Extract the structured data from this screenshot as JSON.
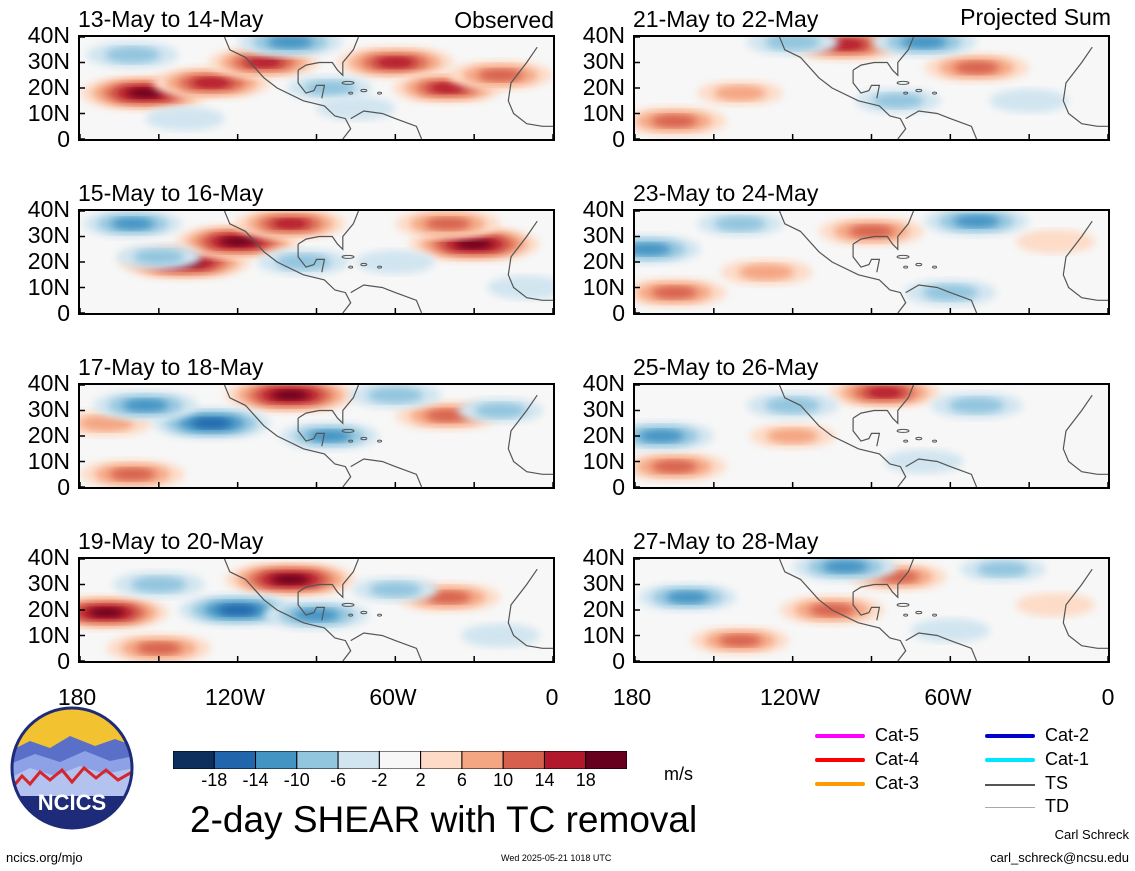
{
  "headers": {
    "observed": "Observed",
    "projected": "Projected Sum"
  },
  "chart_data": {
    "type": "heatmap",
    "title": "2-day SHEAR with TC removal",
    "units": "m/s",
    "y_ticks": [
      "40N",
      "30N",
      "20N",
      "10N",
      "0"
    ],
    "x_ticks": [
      "180",
      "120W",
      "60W",
      "0"
    ],
    "panels": [
      {
        "label": "13-May to 14-May",
        "group": "observed",
        "features": [
          {
            "lon": -155,
            "lat": 18,
            "value": 22
          },
          {
            "lon": -130,
            "lat": 22,
            "value": 18
          },
          {
            "lon": -110,
            "lat": 30,
            "value": 16
          },
          {
            "lon": -60,
            "lat": 30,
            "value": 18
          },
          {
            "lon": -40,
            "lat": 20,
            "value": 16
          },
          {
            "lon": -20,
            "lat": 25,
            "value": 14
          },
          {
            "lon": -100,
            "lat": 38,
            "value": -14
          },
          {
            "lon": -160,
            "lat": 33,
            "value": -10
          },
          {
            "lon": -85,
            "lat": 20,
            "value": -8
          },
          {
            "lon": -75,
            "lat": 12,
            "value": -6
          },
          {
            "lon": -140,
            "lat": 8,
            "value": -6
          }
        ]
      },
      {
        "label": "15-May to 16-May",
        "group": "observed",
        "features": [
          {
            "lon": -140,
            "lat": 20,
            "value": 22
          },
          {
            "lon": -120,
            "lat": 28,
            "value": 20
          },
          {
            "lon": -100,
            "lat": 35,
            "value": 16
          },
          {
            "lon": -30,
            "lat": 27,
            "value": 22
          },
          {
            "lon": -40,
            "lat": 35,
            "value": 14
          },
          {
            "lon": -160,
            "lat": 35,
            "value": -12
          },
          {
            "lon": -150,
            "lat": 22,
            "value": -8
          },
          {
            "lon": -95,
            "lat": 20,
            "value": -10
          },
          {
            "lon": -60,
            "lat": 20,
            "value": -6
          },
          {
            "lon": -10,
            "lat": 10,
            "value": -6
          }
        ]
      },
      {
        "label": "17-May to 18-May",
        "group": "observed",
        "features": [
          {
            "lon": -100,
            "lat": 36,
            "value": 22
          },
          {
            "lon": -40,
            "lat": 28,
            "value": 14
          },
          {
            "lon": -170,
            "lat": 25,
            "value": 10
          },
          {
            "lon": -160,
            "lat": 5,
            "value": 14
          },
          {
            "lon": -130,
            "lat": 25,
            "value": -18
          },
          {
            "lon": -155,
            "lat": 32,
            "value": -14
          },
          {
            "lon": -85,
            "lat": 20,
            "value": -12
          },
          {
            "lon": -60,
            "lat": 36,
            "value": -10
          },
          {
            "lon": -20,
            "lat": 30,
            "value": -8
          }
        ]
      },
      {
        "label": "19-May to 20-May",
        "group": "observed",
        "features": [
          {
            "lon": -170,
            "lat": 19,
            "value": 20
          },
          {
            "lon": -100,
            "lat": 32,
            "value": 22
          },
          {
            "lon": -40,
            "lat": 25,
            "value": 14
          },
          {
            "lon": -150,
            "lat": 5,
            "value": 14
          },
          {
            "lon": -120,
            "lat": 20,
            "value": -18
          },
          {
            "lon": -90,
            "lat": 18,
            "value": -14
          },
          {
            "lon": -150,
            "lat": 30,
            "value": -10
          },
          {
            "lon": -60,
            "lat": 28,
            "value": -8
          },
          {
            "lon": -20,
            "lat": 10,
            "value": -6
          }
        ]
      },
      {
        "label": "21-May to 22-May",
        "group": "projected",
        "features": [
          {
            "lon": -165,
            "lat": 7,
            "value": 14
          },
          {
            "lon": -100,
            "lat": 37,
            "value": 18
          },
          {
            "lon": -50,
            "lat": 28,
            "value": 14
          },
          {
            "lon": -140,
            "lat": 18,
            "value": 8
          },
          {
            "lon": -120,
            "lat": 38,
            "value": -10
          },
          {
            "lon": -70,
            "lat": 38,
            "value": -14
          },
          {
            "lon": -80,
            "lat": 15,
            "value": -8
          },
          {
            "lon": -30,
            "lat": 15,
            "value": -6
          }
        ]
      },
      {
        "label": "23-May to 24-May",
        "group": "projected",
        "features": [
          {
            "lon": -165,
            "lat": 8,
            "value": 14
          },
          {
            "lon": -90,
            "lat": 32,
            "value": 14
          },
          {
            "lon": -130,
            "lat": 16,
            "value": 10
          },
          {
            "lon": -20,
            "lat": 28,
            "value": 6
          },
          {
            "lon": -175,
            "lat": 25,
            "value": -14
          },
          {
            "lon": -50,
            "lat": 36,
            "value": -14
          },
          {
            "lon": -140,
            "lat": 35,
            "value": -8
          },
          {
            "lon": -60,
            "lat": 8,
            "value": -10
          }
        ]
      },
      {
        "label": "25-May to 26-May",
        "group": "projected",
        "features": [
          {
            "lon": -165,
            "lat": 8,
            "value": 14
          },
          {
            "lon": -85,
            "lat": 37,
            "value": 16
          },
          {
            "lon": -120,
            "lat": 20,
            "value": 8
          },
          {
            "lon": -170,
            "lat": 20,
            "value": -14
          },
          {
            "lon": -120,
            "lat": 32,
            "value": -10
          },
          {
            "lon": -50,
            "lat": 32,
            "value": -10
          },
          {
            "lon": -70,
            "lat": 10,
            "value": -6
          }
        ]
      },
      {
        "label": "27-May to 28-May",
        "group": "projected",
        "features": [
          {
            "lon": -140,
            "lat": 8,
            "value": 12
          },
          {
            "lon": -105,
            "lat": 20,
            "value": 14
          },
          {
            "lon": -80,
            "lat": 33,
            "value": 12
          },
          {
            "lon": -20,
            "lat": 22,
            "value": 6
          },
          {
            "lon": -160,
            "lat": 25,
            "value": -12
          },
          {
            "lon": -100,
            "lat": 37,
            "value": -14
          },
          {
            "lon": -40,
            "lat": 36,
            "value": -8
          },
          {
            "lon": -60,
            "lat": 12,
            "value": -6
          }
        ]
      }
    ],
    "colorbar": {
      "labels": [
        "-18",
        "-14",
        "-10",
        "-6",
        "-2",
        "2",
        "6",
        "10",
        "14",
        "18"
      ],
      "colors": [
        "#0c2f5e",
        "#2166ac",
        "#4393c3",
        "#92c5de",
        "#d1e5f0",
        "#f7f7f7",
        "#fddbc7",
        "#f4a582",
        "#d6604d",
        "#b2182b",
        "#67001f"
      ]
    }
  },
  "legend": {
    "items": [
      {
        "label": "Cat-5",
        "color": "#ff00ff"
      },
      {
        "label": "Cat-4",
        "color": "#ff0000"
      },
      {
        "label": "Cat-3",
        "color": "#ff9900"
      },
      {
        "label": "Cat-2",
        "color": "#0000cc"
      },
      {
        "label": "Cat-1",
        "color": "#00e5ff"
      },
      {
        "label": "TS",
        "color": "#555555"
      },
      {
        "label": "TD",
        "color": "#aaaaaa"
      }
    ]
  },
  "logo": {
    "text": "NCICS"
  },
  "footer": {
    "url": "ncics.org/mjo",
    "timestamp": "Wed 2025-05-21 1018 UTC",
    "author": "Carl Schreck",
    "email": "carl_schreck@ncsu.edu"
  }
}
